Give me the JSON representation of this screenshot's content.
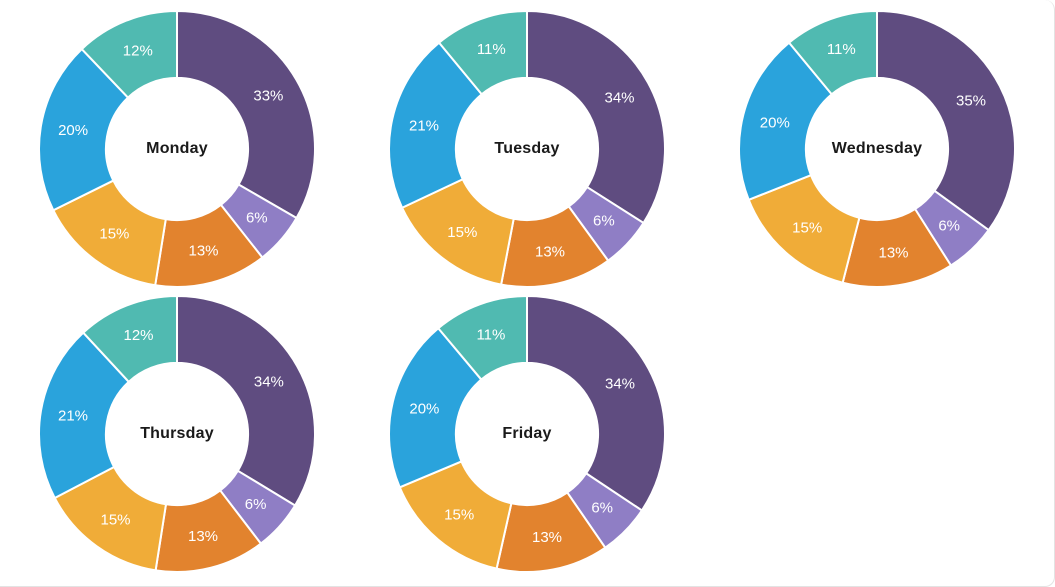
{
  "page": {
    "background_color": "#ffffff",
    "card_border_color": "#e3e3e3"
  },
  "chart_data": {
    "type": "pie",
    "variant": "donut",
    "unit": "%",
    "legend": "none",
    "direction": "clockwise",
    "start_angle_deg": 0,
    "inner_radius_ratio": 0.515,
    "slice_separator_color": "#ffffff",
    "slice_label_color": "#ffffff",
    "center_label_color": "#1a1a1a",
    "segment_colors": [
      "#5f4c80",
      "#8f7ec5",
      "#e2832e",
      "#f0ac38",
      "#2aa3dc",
      "#50bab1"
    ],
    "charts": [
      {
        "title": "Monday",
        "values": [
          33,
          6,
          13,
          15,
          20,
          12
        ],
        "labels": [
          "33%",
          "6%",
          "13%",
          "15%",
          "20%",
          "12%"
        ]
      },
      {
        "title": "Tuesday",
        "values": [
          34,
          6,
          13,
          15,
          21,
          11
        ],
        "labels": [
          "34%",
          "6%",
          "13%",
          "15%",
          "21%",
          "11%"
        ]
      },
      {
        "title": "Wednesday",
        "values": [
          35,
          6,
          13,
          15,
          20,
          11
        ],
        "labels": [
          "35%",
          "6%",
          "13%",
          "15%",
          "20%",
          "11%"
        ]
      },
      {
        "title": "Thursday",
        "values": [
          34,
          6,
          13,
          15,
          21,
          12
        ],
        "labels": [
          "34%",
          "6%",
          "13%",
          "15%",
          "21%",
          "12%"
        ]
      },
      {
        "title": "Friday",
        "values": [
          34,
          6,
          13,
          15,
          20,
          11
        ],
        "labels": [
          "34%",
          "6%",
          "13%",
          "15%",
          "20%",
          "11%"
        ]
      }
    ]
  }
}
